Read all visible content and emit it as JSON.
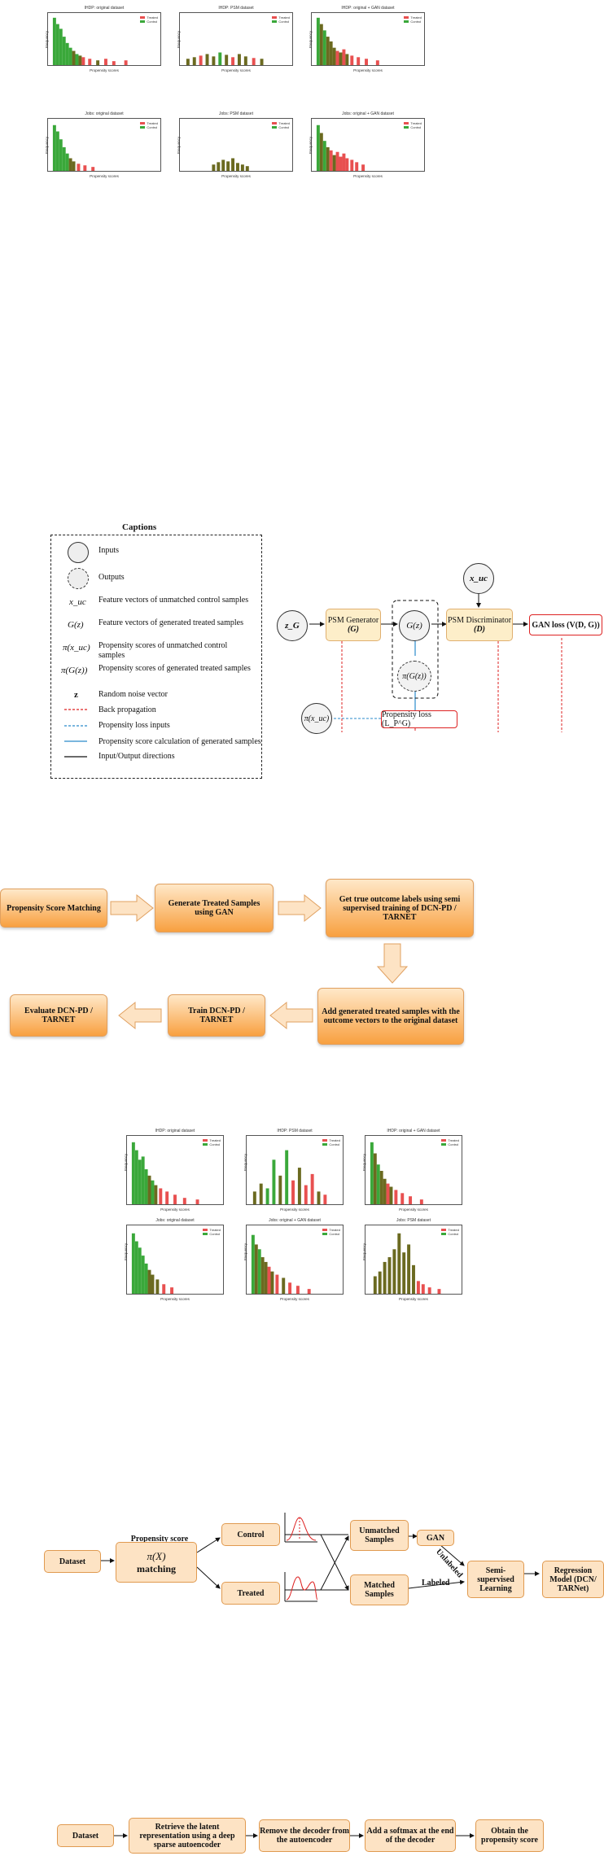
{
  "fig1": {
    "charts": [
      {
        "title": "IHDP: original dataset",
        "xlabel": "Propensity scores",
        "ylabel": "Frequency"
      },
      {
        "title": "IHDP: PSM dataset",
        "xlabel": "Propensity scores",
        "ylabel": "Frequency"
      },
      {
        "title": "IHDP: original + GAN dataset",
        "xlabel": "Propensity scores",
        "ylabel": "Frequency"
      },
      {
        "title": "Jobs: original dataset",
        "xlabel": "Propensity scores",
        "ylabel": "Frequency"
      },
      {
        "title": "Jobs: PSM dataset",
        "xlabel": "Propensity scores",
        "ylabel": "Frequency"
      },
      {
        "title": "Jobs: original + GAN dataset",
        "xlabel": "Propensity scores",
        "ylabel": "Frequency"
      }
    ],
    "legend": [
      "Treated",
      "Control"
    ],
    "colors": {
      "treated": "#e85050",
      "control": "#3aa83a",
      "overlap": "#6b6a20"
    }
  },
  "captions": {
    "title": "Captions",
    "rows": [
      {
        "sym": "",
        "text": "Inputs"
      },
      {
        "sym": "",
        "text": "Outputs"
      },
      {
        "sym": "x_uc",
        "text": "Feature vectors of unmatched control samples"
      },
      {
        "sym": "G(z)",
        "text": "Feature vectors of generated treated samples"
      },
      {
        "sym": "π(x_uc)",
        "text": "Propensity scores of unmatched control samples"
      },
      {
        "sym": "π(G(z))",
        "text": "Propensity scores of generated treated samples"
      },
      {
        "sym": "z",
        "text": "Random noise vector"
      },
      {
        "sym": "",
        "text": "Back propagation"
      },
      {
        "sym": "",
        "text": "Propensity loss inputs"
      },
      {
        "sym": "",
        "text": "Propensity score calculation of generated samples"
      },
      {
        "sym": "",
        "text": "Input/Output directions"
      }
    ]
  },
  "gan": {
    "zg": "z_G",
    "generator": "PSM Generator",
    "generator_sym": "(G)",
    "gz": "G(z)",
    "pigz": "π(G(z))",
    "xuc": "x_uc",
    "discriminator": "PSM Discriminator",
    "discriminator_sym": "(D)",
    "ganloss": "GAN loss (V(D, G))",
    "pixuc": "π(x_uc)",
    "proploss": "Propensity loss (L_P^G)"
  },
  "flow1": {
    "b1": "Propensity Score Matching",
    "b2": "Generate Treated Samples using GAN",
    "b3": "Get true outcome labels using semi supervised training of DCN-PD / TARNET",
    "b4": "Add generated treated samples with the outcome vectors to the original dataset",
    "b5": "Train DCN-PD / TARNET",
    "b6": "Evaluate DCN-PD / TARNET"
  },
  "fig4": {
    "charts": [
      {
        "title": "IHDP: original dataset",
        "xlabel": "Propensity scores",
        "ylabel": "Frequency"
      },
      {
        "title": "IHDP: PSM dataset",
        "xlabel": "Propensity scores",
        "ylabel": "Frequency"
      },
      {
        "title": "IHDP: original + GAN dataset",
        "xlabel": "Propensity scores",
        "ylabel": "Frequency"
      },
      {
        "title": "Jobs: original dataset",
        "xlabel": "Propensity scores",
        "ylabel": "Frequency"
      },
      {
        "title": "Jobs: original + GAN dataset",
        "xlabel": "Propensity scores",
        "ylabel": "Frequency"
      },
      {
        "title": "Jobs: PSM dataset",
        "xlabel": "Propensity scores",
        "ylabel": "Frequency"
      }
    ]
  },
  "pipeline": {
    "dataset": "Dataset",
    "ps_label": "Propensity score",
    "ps_sym": "π(X)",
    "matching": "matching",
    "control": "Control",
    "treated": "Treated",
    "unmatched": "Unmatched Samples",
    "matched": "Matched Samples",
    "gan": "GAN",
    "unlabeled": "Unlabeled",
    "labeled": "Labeled",
    "semi": "Semi-supervised Learning",
    "regression": "Regression Model (DCN/ TARNet)"
  },
  "encoder_flow": {
    "b1": "Dataset",
    "b2": "Retrieve the latent representation  using a deep sparse autoencoder",
    "b3": "Remove the decoder from the autoencoder",
    "b4": "Add a softmax at the end of the decoder",
    "b5": "Obtain the propensity score"
  }
}
